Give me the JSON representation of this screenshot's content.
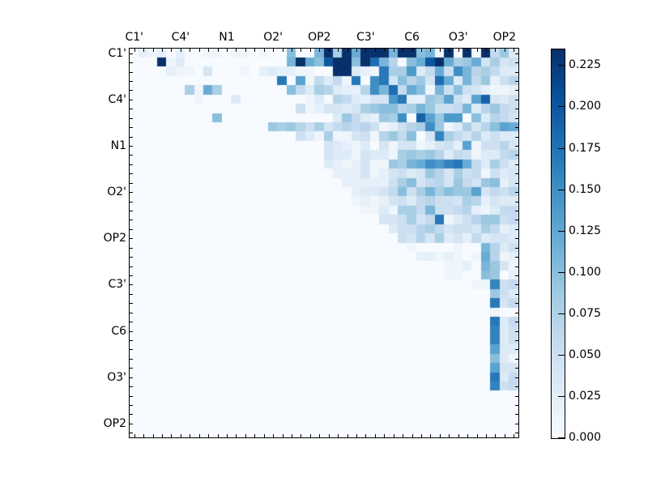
{
  "chart_data": {
    "type": "heatmap",
    "title": "",
    "xlabel": "",
    "ylabel": "",
    "n": 42,
    "x_tick_labels": [
      "C1'",
      "C4'",
      "N1",
      "O2'",
      "OP2",
      "C3'",
      "C6",
      "O3'",
      "OP2"
    ],
    "y_tick_labels": [
      "C1'",
      "C4'",
      "N1",
      "O2'",
      "OP2",
      "C3'",
      "C6",
      "O3'",
      "OP2"
    ],
    "tick_label_positions": [
      0,
      5,
      10,
      15,
      20,
      25,
      30,
      35,
      40
    ],
    "x_axis_position": "top",
    "colormap": "Blues",
    "colorbar": {
      "vmin": 0.0,
      "vmax": 0.235,
      "ticks": [
        "0.000",
        "0.025",
        "0.050",
        "0.075",
        "0.100",
        "0.125",
        "0.150",
        "0.175",
        "0.200",
        "0.225"
      ],
      "tick_values": [
        0.0,
        0.025,
        0.05,
        0.075,
        0.1,
        0.125,
        0.15,
        0.175,
        0.2,
        0.225
      ]
    },
    "grid": false,
    "structure": "upper-triangular distance/contact matrix, 42x42",
    "z_rows": [
      "000201020002000001010001010001000010000011800853125040301130801011019000300030060903",
      "000000400103000000000000000000000011301210203091109118110700101220901208091204080405",
      "000000000201010004000000010002030202010100003050030201170808140306120515110708060303",
      "000000000000000000000000000000001700130106030601170015170410070904181203110609020507",
      "000000000000080112080000000000000010060308070302020715111806121001110510050402010102",
      "000000000000000100000003000000000000000103000706030204041417020209081305031319040305",
      "000000000000000000000000000000000000050102040403040809101007081109050506110307090605",
      "000000000000000000100000000000000000000000000309060302090815001913091414001003070604",
      "000000000000000000000000000000090809070508040607060705010205070815090103080407101312",
      "000000000000000000000000000000000000050301080101040501070906100004160806040703050303",
      "000000000000000000000000000000000000000000040302010300040104040102040502130105050704",
      "000000000000000000000000000000000000000000040303010403030108090809070306050103030607",
      "000000000000000000000000000000000000000000030201020401010908111215141617120603080503",
      "000000000000000000000000000000000000000000000202020401020405030409070408050601050304",
      "000000000000000000000000000000000000000000000002020202020508100406070409060409100204",
      "000000000000000000000000000000000000000000000000020303040610050811081009091304060507",
      "000000000000000000000000000000000000000000000000010201020405030607050504080702040303",
      "000000000000000000000000000000000000000000000000000101030108080611050506070201030606",
      "000000000000000000000000000000000000000000000000000000040405080406170103050709090506",
      "000000000000000000000000000000000000000000000000000000000305050708060405050408060203",
      "000000000000000000000000000000000000000000000000000000000005040704080304020603040403",
      "000000000000000000000000000000000000000000000000000000000000010000000001000011070305",
      "000000000000000000000000000000000000000000000000000000000000000202010201000112070102",
      "000000000000000000000000000000000000000000000000000000000000000000000101020011090401",
      "000000000000000000000000000000000000000000000000000000000000000000000101000010090002",
      "000000000000000000000000000000000000000000000000000000000000000000000000000101160506",
      "000000000000000000000000000000000000000000000000000000000000000000000000000000090503",
      "000000000000000000000000000000000000000000000000000000000000000000000000000000170406",
      "000000000000000000000000000000000000000000000000000000000000000000000000000000010000",
      "000000000000000000000000000000000000000000000000000000000000000000000000000000170306",
      "000000000000000000000000000000000000000000000000000000000000000000000000000000160305",
      "000000000000000000000000000000000000000000000000000000000000000000000000000000160305",
      "000000000000000000000000000000000000000000000000000000000000000000000000000000130303",
      "000000000000000000000000000000000000000000000000000000000000000000000000000000100301",
      "000000000000000000000000000000000000000000000000000000000000000000000000000000130404",
      "000000000000000000000000000000000000000000000000000000000000000000000000000000170306",
      "000000000000000000000000000000000000000000000000000000000000000000000000000000160506",
      "000000000000000000000000000000000000000000000000000000000000000000000000000000000000",
      "000000000000000000000000000000000000000000000000000000000000000000000000000000000000",
      "000000000000000000000000000000000000000000000000000000000000000000000000000000000000",
      "000000000000000000000000000000000000000000000000000000000000000000000000000000000000",
      "000000000000000000000000000000000000000000000000000000000000000000000000000000000000"
    ],
    "z_encoding": "each row = 42 two-digit values in units of 0.01"
  }
}
